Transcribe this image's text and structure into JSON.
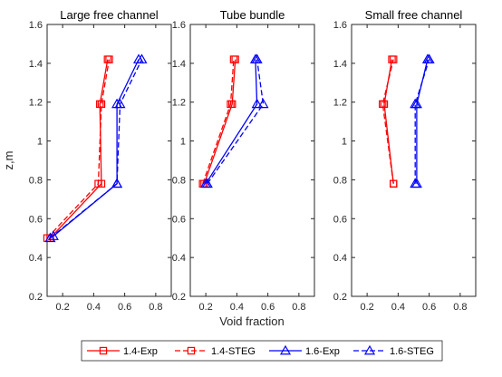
{
  "chart_data": [
    {
      "type": "line",
      "title": "Large free channel",
      "xlim": [
        0.1,
        0.9
      ],
      "ylim": [
        0.2,
        1.6
      ],
      "grid": false,
      "series": [
        {
          "name": "1.4-Exp",
          "color": "#ff0000",
          "dash": "solid",
          "marker": "square",
          "points": [
            [
              0.12,
              0.5
            ],
            [
              0.45,
              0.78
            ],
            [
              0.44,
              1.19
            ],
            [
              0.49,
              1.42
            ]
          ]
        },
        {
          "name": "1.4-STEG",
          "color": "#ff0000",
          "dash": "dashed",
          "marker": "square",
          "points": [
            [
              0.1,
              0.5
            ],
            [
              0.43,
              0.78
            ],
            [
              0.45,
              1.19
            ],
            [
              0.5,
              1.42
            ]
          ]
        },
        {
          "name": "1.6-Exp",
          "color": "#0000ff",
          "dash": "solid",
          "marker": "triangle",
          "points": [
            [
              0.14,
              0.51
            ],
            [
              0.55,
              0.78
            ],
            [
              0.55,
              1.19
            ],
            [
              0.69,
              1.42
            ]
          ]
        },
        {
          "name": "1.6-STEG",
          "color": "#0000ff",
          "dash": "dashed",
          "marker": "triangle",
          "points": [
            [
              0.12,
              0.5
            ],
            [
              0.55,
              0.78
            ],
            [
              0.57,
              1.19
            ],
            [
              0.71,
              1.42
            ]
          ]
        }
      ]
    },
    {
      "type": "line",
      "title": "Tube bundle",
      "xlim": [
        0.1,
        0.9
      ],
      "ylim": [
        0.2,
        1.6
      ],
      "grid": false,
      "series": [
        {
          "name": "1.4-Exp",
          "color": "#ff0000",
          "dash": "solid",
          "marker": "square",
          "points": [
            [
              0.19,
              0.78
            ],
            [
              0.37,
              1.19
            ],
            [
              0.39,
              1.42
            ]
          ]
        },
        {
          "name": "1.4-STEG",
          "color": "#ff0000",
          "dash": "dashed",
          "marker": "square",
          "points": [
            [
              0.18,
              0.78
            ],
            [
              0.36,
              1.19
            ],
            [
              0.38,
              1.42
            ]
          ]
        },
        {
          "name": "1.6-Exp",
          "color": "#0000ff",
          "dash": "solid",
          "marker": "triangle",
          "points": [
            [
              0.2,
              0.78
            ],
            [
              0.53,
              1.19
            ],
            [
              0.52,
              1.42
            ]
          ]
        },
        {
          "name": "1.6-STEG",
          "color": "#0000ff",
          "dash": "dashed",
          "marker": "triangle",
          "points": [
            [
              0.21,
              0.78
            ],
            [
              0.57,
              1.19
            ],
            [
              0.53,
              1.42
            ]
          ]
        }
      ]
    },
    {
      "type": "line",
      "title": "Small free channel",
      "xlim": [
        0.1,
        0.9
      ],
      "ylim": [
        0.2,
        1.6
      ],
      "grid": false,
      "series": [
        {
          "name": "1.4-Exp",
          "color": "#ff0000",
          "dash": "solid",
          "marker": "square",
          "points": [
            [
              0.37,
              0.78
            ],
            [
              0.31,
              1.19
            ],
            [
              0.36,
              1.42
            ]
          ]
        },
        {
          "name": "1.4-STEG",
          "color": "#ff0000",
          "dash": "dashed",
          "marker": "square",
          "points": [
            [
              0.37,
              0.78
            ],
            [
              0.3,
              1.19
            ],
            [
              0.37,
              1.42
            ]
          ]
        },
        {
          "name": "1.6-Exp",
          "color": "#0000ff",
          "dash": "solid",
          "marker": "triangle",
          "points": [
            [
              0.52,
              0.78
            ],
            [
              0.52,
              1.19
            ],
            [
              0.59,
              1.42
            ]
          ]
        },
        {
          "name": "1.6-STEG",
          "color": "#0000ff",
          "dash": "dashed",
          "marker": "triangle",
          "points": [
            [
              0.51,
              0.78
            ],
            [
              0.51,
              1.19
            ],
            [
              0.6,
              1.42
            ]
          ]
        }
      ]
    }
  ],
  "axes": {
    "x_ticks": [
      "0.2",
      "0.4",
      "0.6",
      "0.8"
    ],
    "x_tick_values": [
      0.2,
      0.4,
      0.6,
      0.8
    ],
    "y_ticks": [
      "0.2",
      "0.4",
      "0.6",
      "0.8",
      "1",
      "1.2",
      "1.4",
      "1.6"
    ],
    "y_tick_values": [
      0.2,
      0.4,
      0.6,
      0.8,
      1.0,
      1.2,
      1.4,
      1.6
    ],
    "xlabel": "Void fraction",
    "ylabel": "z,m"
  },
  "legend": {
    "placement": "bottom",
    "entries": [
      {
        "label": "1.4-Exp",
        "color": "#ff0000",
        "dash": "solid",
        "marker": "square"
      },
      {
        "label": "1.4-STEG",
        "color": "#ff0000",
        "dash": "dashed",
        "marker": "square"
      },
      {
        "label": "1.6-Exp",
        "color": "#0000ff",
        "dash": "solid",
        "marker": "triangle"
      },
      {
        "label": "1.6-STEG",
        "color": "#0000ff",
        "dash": "dashed",
        "marker": "triangle"
      }
    ]
  }
}
